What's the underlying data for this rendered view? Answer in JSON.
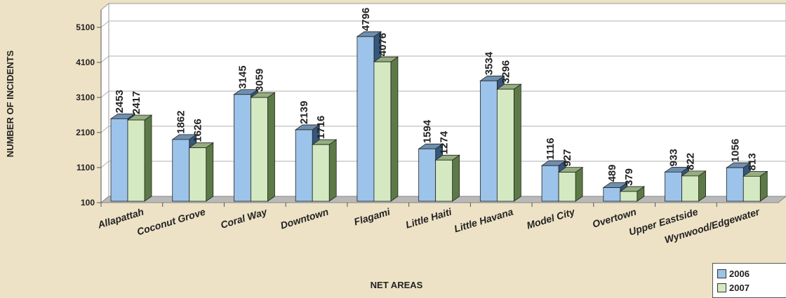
{
  "chart_data": {
    "type": "bar",
    "title": "",
    "xlabel": "NET AREAS",
    "ylabel": "NUMBER OF INCIDENTS",
    "ylim": [
      100,
      5600
    ],
    "yticks": [
      100,
      1100,
      2100,
      3100,
      4100,
      5100
    ],
    "grid": true,
    "legend_position": "bottom-right",
    "categories": [
      "Allapattah",
      "Coconut Grove",
      "Coral Way",
      "Downtown",
      "Flagami",
      "Little Haiti",
      "Little Havana",
      "Model City",
      "Overtown",
      "Upper Eastside",
      "Wynwood/Edgewater"
    ],
    "series": [
      {
        "name": "2006",
        "color": "#9cc3ea",
        "values": [
          2453,
          1862,
          3145,
          2139,
          4796,
          1594,
          3534,
          1116,
          489,
          933,
          1056
        ]
      },
      {
        "name": "2007",
        "color": "#d4e9c2",
        "values": [
          2417,
          1626,
          3059,
          1716,
          4076,
          1274,
          3296,
          927,
          379,
          822,
          813
        ]
      }
    ]
  }
}
